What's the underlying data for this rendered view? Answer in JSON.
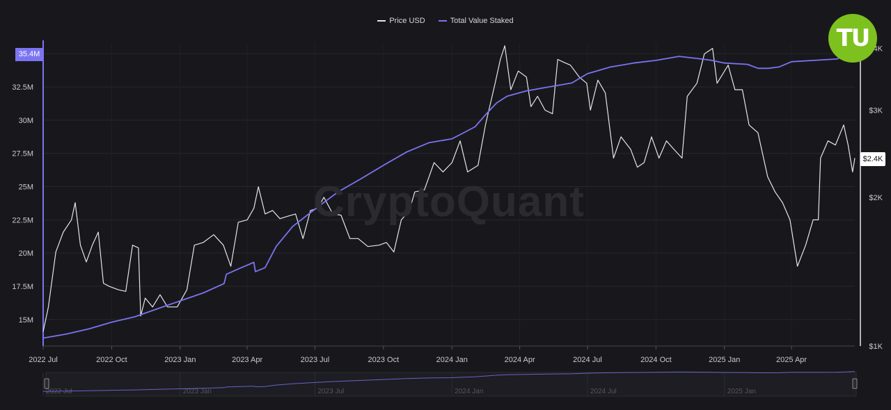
{
  "legend": {
    "price_label": "Price USD",
    "staked_label": "Total Value Staked"
  },
  "watermark": "CryptoQuant",
  "logo_text": "TU",
  "colors": {
    "background": "#18181c",
    "price": "#e6e6ea",
    "staked": "#7b74f2",
    "grid": "#26262c",
    "logo": "#7dc11f"
  },
  "chart_data": {
    "type": "line",
    "title": "",
    "x_tick_labels": [
      "2022 Jul",
      "2022 Oct",
      "2023 Jan",
      "2023 Apr",
      "2023 Jul",
      "2023 Oct",
      "2024 Jan",
      "2024 Apr",
      "2024 Jul",
      "2024 Oct",
      "2025 Jan",
      "2025 Apr"
    ],
    "x_range": [
      "2022-07-01",
      "2025-06-25"
    ],
    "y_left": {
      "label": "",
      "ticks": [
        "15M",
        "17.5M",
        "20M",
        "22.5M",
        "25M",
        "27.5M",
        "30M",
        "32.5M",
        "35M"
      ],
      "range": [
        13.0,
        35.8
      ],
      "unit": "M"
    },
    "y_right": {
      "label": "",
      "ticks": [
        "$1K",
        "$2K",
        "$3K",
        "$4K"
      ],
      "scale": "log",
      "range": [
        1000,
        4100
      ]
    },
    "badges": {
      "staked_current": "35.4M",
      "price_current": "$2.4K"
    },
    "grid": true,
    "legend_position": "top-center",
    "series": [
      {
        "name": "Price USD",
        "axis": "right",
        "color": "#e6e6ea",
        "points": [
          [
            "2022-07-01",
            1070
          ],
          [
            "2022-07-08",
            1200
          ],
          [
            "2022-07-18",
            1550
          ],
          [
            "2022-07-28",
            1700
          ],
          [
            "2022-08-08",
            1800
          ],
          [
            "2022-08-13",
            1950
          ],
          [
            "2022-08-20",
            1600
          ],
          [
            "2022-08-28",
            1480
          ],
          [
            "2022-09-05",
            1600
          ],
          [
            "2022-09-13",
            1700
          ],
          [
            "2022-09-20",
            1340
          ],
          [
            "2022-09-28",
            1320
          ],
          [
            "2022-10-10",
            1300
          ],
          [
            "2022-10-20",
            1290
          ],
          [
            "2022-10-29",
            1600
          ],
          [
            "2022-11-06",
            1580
          ],
          [
            "2022-11-09",
            1150
          ],
          [
            "2022-11-15",
            1250
          ],
          [
            "2022-11-25",
            1200
          ],
          [
            "2022-12-05",
            1270
          ],
          [
            "2022-12-15",
            1200
          ],
          [
            "2022-12-28",
            1200
          ],
          [
            "2023-01-10",
            1300
          ],
          [
            "2023-01-20",
            1600
          ],
          [
            "2023-02-01",
            1620
          ],
          [
            "2023-02-15",
            1680
          ],
          [
            "2023-02-28",
            1600
          ],
          [
            "2023-03-10",
            1450
          ],
          [
            "2023-03-20",
            1780
          ],
          [
            "2023-04-01",
            1800
          ],
          [
            "2023-04-10",
            1900
          ],
          [
            "2023-04-16",
            2100
          ],
          [
            "2023-04-25",
            1850
          ],
          [
            "2023-05-05",
            1880
          ],
          [
            "2023-05-15",
            1810
          ],
          [
            "2023-05-25",
            1830
          ],
          [
            "2023-06-05",
            1850
          ],
          [
            "2023-06-15",
            1650
          ],
          [
            "2023-06-25",
            1880
          ],
          [
            "2023-07-05",
            1900
          ],
          [
            "2023-07-13",
            2000
          ],
          [
            "2023-07-25",
            1850
          ],
          [
            "2023-08-05",
            1840
          ],
          [
            "2023-08-17",
            1650
          ],
          [
            "2023-08-28",
            1650
          ],
          [
            "2023-09-10",
            1590
          ],
          [
            "2023-09-25",
            1600
          ],
          [
            "2023-10-05",
            1620
          ],
          [
            "2023-10-15",
            1550
          ],
          [
            "2023-10-25",
            1800
          ],
          [
            "2023-11-05",
            1880
          ],
          [
            "2023-11-12",
            2050
          ],
          [
            "2023-11-25",
            2070
          ],
          [
            "2023-12-08",
            2350
          ],
          [
            "2023-12-20",
            2250
          ],
          [
            "2024-01-01",
            2350
          ],
          [
            "2024-01-12",
            2600
          ],
          [
            "2024-01-22",
            2250
          ],
          [
            "2024-02-05",
            2320
          ],
          [
            "2024-02-15",
            2800
          ],
          [
            "2024-02-28",
            3400
          ],
          [
            "2024-03-06",
            3800
          ],
          [
            "2024-03-12",
            4050
          ],
          [
            "2024-03-20",
            3300
          ],
          [
            "2024-03-30",
            3600
          ],
          [
            "2024-04-10",
            3500
          ],
          [
            "2024-04-16",
            3050
          ],
          [
            "2024-04-25",
            3200
          ],
          [
            "2024-05-05",
            3000
          ],
          [
            "2024-05-15",
            2950
          ],
          [
            "2024-05-22",
            3800
          ],
          [
            "2024-05-30",
            3750
          ],
          [
            "2024-06-08",
            3700
          ],
          [
            "2024-06-20",
            3500
          ],
          [
            "2024-06-30",
            3400
          ],
          [
            "2024-07-05",
            3000
          ],
          [
            "2024-07-15",
            3450
          ],
          [
            "2024-07-25",
            3250
          ],
          [
            "2024-08-05",
            2400
          ],
          [
            "2024-08-15",
            2650
          ],
          [
            "2024-08-28",
            2500
          ],
          [
            "2024-09-06",
            2300
          ],
          [
            "2024-09-15",
            2350
          ],
          [
            "2024-09-25",
            2650
          ],
          [
            "2024-10-05",
            2400
          ],
          [
            "2024-10-15",
            2600
          ],
          [
            "2024-10-25",
            2500
          ],
          [
            "2024-11-05",
            2400
          ],
          [
            "2024-11-12",
            3200
          ],
          [
            "2024-11-25",
            3400
          ],
          [
            "2024-12-05",
            3900
          ],
          [
            "2024-12-16",
            4000
          ],
          [
            "2024-12-22",
            3400
          ],
          [
            "2025-01-06",
            3700
          ],
          [
            "2025-01-15",
            3300
          ],
          [
            "2025-01-25",
            3300
          ],
          [
            "2025-02-03",
            2800
          ],
          [
            "2025-02-15",
            2700
          ],
          [
            "2025-02-28",
            2200
          ],
          [
            "2025-03-10",
            2050
          ],
          [
            "2025-03-20",
            1950
          ],
          [
            "2025-03-30",
            1800
          ],
          [
            "2025-04-09",
            1450
          ],
          [
            "2025-04-20",
            1600
          ],
          [
            "2025-04-30",
            1800
          ],
          [
            "2025-05-07",
            1800
          ],
          [
            "2025-05-10",
            2400
          ],
          [
            "2025-05-20",
            2600
          ],
          [
            "2025-05-30",
            2550
          ],
          [
            "2025-06-10",
            2800
          ],
          [
            "2025-06-16",
            2550
          ],
          [
            "2025-06-22",
            2250
          ],
          [
            "2025-06-25",
            2400
          ]
        ]
      },
      {
        "name": "Total Value Staked",
        "axis": "left",
        "color": "#7b74f2",
        "points": [
          [
            "2022-07-01",
            13.6
          ],
          [
            "2022-08-01",
            13.9
          ],
          [
            "2022-09-01",
            14.3
          ],
          [
            "2022-10-01",
            14.8
          ],
          [
            "2022-11-01",
            15.2
          ],
          [
            "2022-12-01",
            15.8
          ],
          [
            "2023-01-01",
            16.4
          ],
          [
            "2023-02-01",
            17.0
          ],
          [
            "2023-03-01",
            17.7
          ],
          [
            "2023-03-04",
            18.4
          ],
          [
            "2023-03-20",
            18.8
          ],
          [
            "2023-04-10",
            19.3
          ],
          [
            "2023-04-12",
            18.6
          ],
          [
            "2023-04-25",
            18.9
          ],
          [
            "2023-05-10",
            20.5
          ],
          [
            "2023-06-01",
            22.0
          ],
          [
            "2023-07-01",
            23.3
          ],
          [
            "2023-08-01",
            24.6
          ],
          [
            "2023-09-01",
            25.6
          ],
          [
            "2023-10-01",
            26.6
          ],
          [
            "2023-11-01",
            27.6
          ],
          [
            "2023-12-01",
            28.3
          ],
          [
            "2024-01-01",
            28.6
          ],
          [
            "2024-01-15",
            29.0
          ],
          [
            "2024-02-01",
            29.5
          ],
          [
            "2024-02-15",
            30.4
          ],
          [
            "2024-03-01",
            31.3
          ],
          [
            "2024-03-15",
            31.8
          ],
          [
            "2024-04-10",
            32.2
          ],
          [
            "2024-05-10",
            32.5
          ],
          [
            "2024-06-10",
            32.8
          ],
          [
            "2024-07-01",
            33.5
          ],
          [
            "2024-08-01",
            34.0
          ],
          [
            "2024-09-01",
            34.3
          ],
          [
            "2024-10-01",
            34.5
          ],
          [
            "2024-11-01",
            34.8
          ],
          [
            "2024-12-01",
            34.6
          ],
          [
            "2024-12-15",
            34.5
          ],
          [
            "2025-01-01",
            34.3
          ],
          [
            "2025-02-01",
            34.2
          ],
          [
            "2025-02-15",
            33.9
          ],
          [
            "2025-03-01",
            33.9
          ],
          [
            "2025-03-15",
            34.0
          ],
          [
            "2025-04-01",
            34.4
          ],
          [
            "2025-05-01",
            34.5
          ],
          [
            "2025-06-01",
            34.6
          ],
          [
            "2025-06-15",
            35.0
          ],
          [
            "2025-06-25",
            35.4
          ]
        ]
      }
    ]
  },
  "navigator": {
    "tick_labels": [
      "2022 Jul",
      "2023 Jan",
      "2023 Jul",
      "2024 Jan",
      "2024 Jul",
      "2025 Jan"
    ]
  }
}
